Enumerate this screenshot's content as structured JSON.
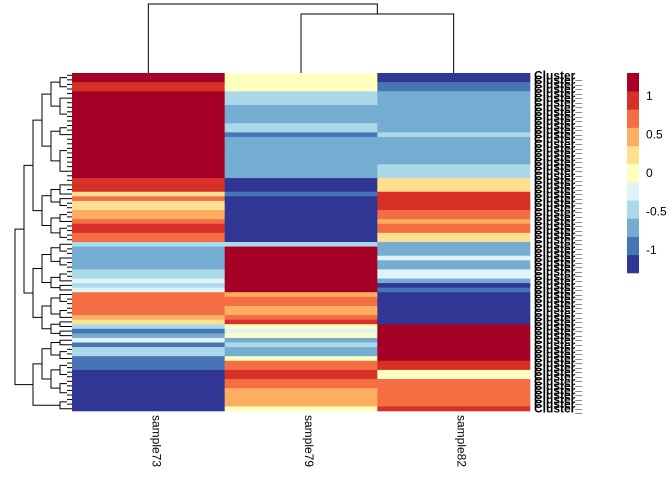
{
  "chart_data": {
    "type": "heatmap",
    "title": "",
    "columns": [
      "sample73",
      "sample79",
      "sample82"
    ],
    "row_label_text": "Cluster_",
    "colors": [
      "#313695",
      "#4575b4",
      "#74add1",
      "#abd9e9",
      "#e0f3f8",
      "#ffffbf",
      "#fee090",
      "#fdae61",
      "#f46d43",
      "#d73027",
      "#a50026"
    ],
    "value_range": [
      -1.3,
      1.3
    ],
    "legend": {
      "position": "right",
      "ticks": [
        {
          "value": 1,
          "label": "1"
        },
        {
          "value": 0.5,
          "label": "0.5"
        },
        {
          "value": 0,
          "label": "0"
        },
        {
          "value": -0.5,
          "label": "-0.5"
        },
        {
          "value": -1,
          "label": "-1"
        }
      ]
    },
    "row_blocks": [
      {
        "n": 2,
        "v": [
          1.15,
          0.1,
          -1.15
        ]
      },
      {
        "n": 2,
        "v": [
          1.05,
          0.05,
          -0.9
        ]
      },
      {
        "n": 3,
        "v": [
          1.15,
          -0.4,
          -0.8
        ]
      },
      {
        "n": 4,
        "v": [
          1.15,
          -0.6,
          -0.7
        ]
      },
      {
        "n": 2,
        "v": [
          1.15,
          -0.4,
          -0.7
        ]
      },
      {
        "n": 1,
        "v": [
          1.15,
          -0.9,
          -0.4
        ]
      },
      {
        "n": 6,
        "v": [
          1.15,
          -0.6,
          -0.7
        ]
      },
      {
        "n": 3,
        "v": [
          1.15,
          -0.6,
          -0.45
        ]
      },
      {
        "n": 3,
        "v": [
          0.9,
          -1.15,
          0.2
        ]
      },
      {
        "n": 1,
        "v": [
          0.3,
          -1.0,
          0.9
        ]
      },
      {
        "n": 1,
        "v": [
          0.6,
          -1.15,
          0.9
        ]
      },
      {
        "n": 2,
        "v": [
          0.2,
          -1.15,
          1.0
        ]
      },
      {
        "n": 2,
        "v": [
          0.5,
          -1.15,
          0.6
        ]
      },
      {
        "n": 1,
        "v": [
          0.7,
          -1.15,
          0.4
        ]
      },
      {
        "n": 2,
        "v": [
          0.9,
          -1.15,
          0.6
        ]
      },
      {
        "n": 2,
        "v": [
          0.8,
          -1.15,
          0.3
        ]
      },
      {
        "n": 1,
        "v": [
          -0.55,
          -0.4,
          -0.7
        ]
      },
      {
        "n": 2,
        "v": [
          -0.6,
          1.15,
          -0.6
        ]
      },
      {
        "n": 1,
        "v": [
          -0.65,
          1.15,
          -0.3
        ]
      },
      {
        "n": 2,
        "v": [
          -0.6,
          1.15,
          -0.6
        ]
      },
      {
        "n": 2,
        "v": [
          -0.5,
          1.15,
          -0.3
        ]
      },
      {
        "n": 1,
        "v": [
          -0.3,
          1.15,
          -0.7
        ]
      },
      {
        "n": 1,
        "v": [
          -0.55,
          1.15,
          -1.1
        ]
      },
      {
        "n": 1,
        "v": [
          -0.25,
          1.15,
          -0.85
        ]
      },
      {
        "n": 1,
        "v": [
          0.8,
          0.55,
          -1.15
        ]
      },
      {
        "n": 2,
        "v": [
          0.8,
          0.7,
          -1.15
        ]
      },
      {
        "n": 2,
        "v": [
          0.8,
          0.45,
          -1.15
        ]
      },
      {
        "n": 1,
        "v": [
          0.5,
          0.7,
          -1.15
        ]
      },
      {
        "n": 1,
        "v": [
          0.3,
          1.0,
          -1.15
        ]
      },
      {
        "n": 1,
        "v": [
          -0.55,
          0.05,
          1.15
        ]
      },
      {
        "n": 1,
        "v": [
          -0.85,
          -0.3,
          1.15
        ]
      },
      {
        "n": 1,
        "v": [
          -0.6,
          0.0,
          1.15
        ]
      },
      {
        "n": 1,
        "v": [
          -0.3,
          -0.6,
          1.15
        ]
      },
      {
        "n": 1,
        "v": [
          -0.85,
          -0.4,
          1.15
        ]
      },
      {
        "n": 2,
        "v": [
          -0.5,
          -0.6,
          1.15
        ]
      },
      {
        "n": 1,
        "v": [
          -1.05,
          0.1,
          1.15
        ]
      },
      {
        "n": 2,
        "v": [
          -0.85,
          0.8,
          1.05
        ]
      },
      {
        "n": 2,
        "v": [
          -1.15,
          0.95,
          0.1
        ]
      },
      {
        "n": 2,
        "v": [
          -1.15,
          0.8,
          0.75
        ]
      },
      {
        "n": 2,
        "v": [
          -1.15,
          0.5,
          0.7
        ]
      },
      {
        "n": 2,
        "v": [
          -1.15,
          0.4,
          0.8
        ]
      },
      {
        "n": 1,
        "v": [
          -1.15,
          0.1,
          1.0
        ]
      }
    ]
  }
}
